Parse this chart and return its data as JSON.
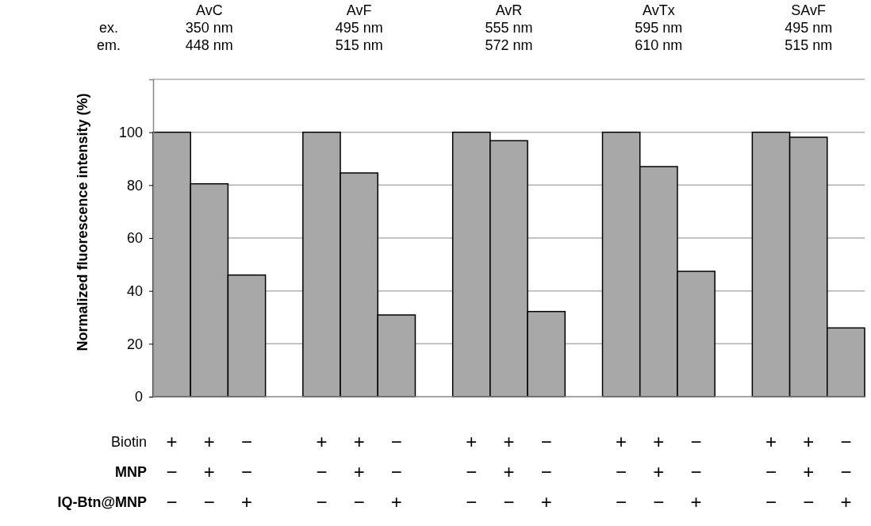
{
  "chart_data": {
    "type": "bar",
    "ylabel": "Normalized fluorescence intensity (%)",
    "categories": [
      "+\n−\n−",
      "+\n+\n−",
      "−\n−\n+",
      "+\n−\n−",
      "+\n+\n−",
      "−\n−\n+",
      "+\n−\n−",
      "+\n+\n−",
      "−\n−\n+",
      "+\n−\n−",
      "+\n+\n−",
      "−\n−\n+",
      "+\n−\n−",
      "+\n+\n−",
      "−\n−\n+"
    ],
    "values": [
      100,
      80.5,
      46,
      100,
      84.6,
      30.9,
      100,
      96.8,
      32.2,
      100,
      87,
      47.4,
      100,
      98.1,
      26
    ],
    "color": "#a8a8a8",
    "ylim": [
      0,
      120
    ],
    "yticks": [
      0,
      20,
      40,
      60,
      80,
      100
    ],
    "grid": "y",
    "annotations": [
      "ex.",
      "em.",
      "Biotin",
      "MNP",
      "IQ-Btn@MNP",
      "AvC\n350 nm\n448 nm",
      "AvF\n495 nm\n515 nm",
      "AvR\n555 nm\n572 nm",
      "AvTx\n595 nm\n610 nm",
      "SAvF\n495 nm\n515 nm"
    ]
  }
}
